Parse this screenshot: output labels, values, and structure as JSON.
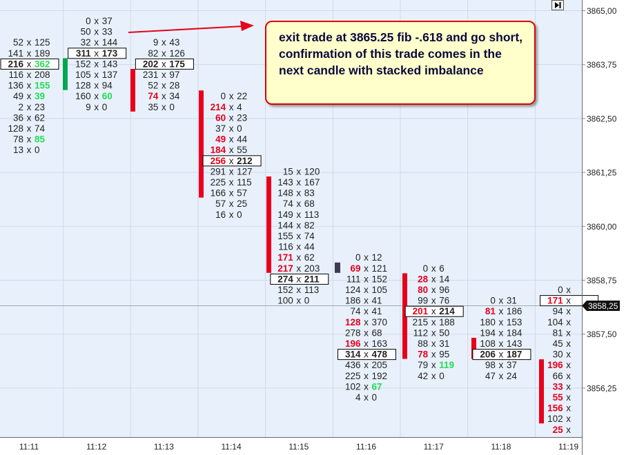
{
  "chart_data": {
    "type": "footprint",
    "y_ticks": [
      "3865,00",
      "3863,75",
      "3862,50",
      "3861,25",
      "3860,00",
      "3858,75",
      "3857,50",
      "3856,25"
    ],
    "x_ticks": [
      "11:11",
      "11:12",
      "11:13",
      "11:14",
      "11:15",
      "11:16",
      "11:17",
      "11:18",
      "11:19"
    ],
    "current_price": "3858,25",
    "colors": {
      "up": "#00a650",
      "down": "#e8001c",
      "bid_hi": "#e8001c",
      "ask_hi": "#22dd55",
      "bg": "#e8f1fb",
      "neutral_bar": "#3c3c50"
    },
    "bars": [
      {
        "color": "green",
        "top_row": 4,
        "bottom_row": 6
      },
      {
        "color": "red",
        "top_row": 5,
        "bottom_row": 8
      },
      {
        "color": "red",
        "top_row": 7,
        "bottom_row": 16
      },
      {
        "color": "red",
        "top_row": 15,
        "bottom_row": 23
      },
      {
        "color": "dark",
        "top_row": 23,
        "bottom_row": 23
      },
      {
        "color": "red",
        "top_row": 24,
        "bottom_row": 31
      },
      {
        "color": "red",
        "top_row": 30,
        "bottom_row": 31
      },
      {
        "color": "red",
        "top_row": 32,
        "bottom_row": 37
      }
    ],
    "columns": [
      {
        "time": "11:11",
        "start_row": 2,
        "cells": [
          {
            "bid": "52",
            "ask": "125"
          },
          {
            "bid": "141",
            "ask": "189"
          },
          {
            "bid": "216",
            "ask": "362",
            "bid_bold": true,
            "ask_hl": "green",
            "poc": true
          },
          {
            "bid": "116",
            "ask": "208"
          },
          {
            "bid": "136",
            "ask": "155",
            "ask_hl": "green"
          },
          {
            "bid": "49",
            "ask": "39",
            "ask_hl": "green"
          },
          {
            "bid": "2",
            "ask": "23"
          },
          {
            "bid": "36",
            "ask": "62"
          },
          {
            "bid": "128",
            "ask": "74"
          },
          {
            "bid": "78",
            "ask": "85",
            "ask_hl": "green"
          },
          {
            "bid": "13",
            "ask": "0"
          }
        ]
      },
      {
        "time": "11:12",
        "start_row": 0,
        "cells": [
          {
            "bid": "0",
            "ask": "37"
          },
          {
            "bid": "50",
            "ask": "33"
          },
          {
            "bid": "32",
            "ask": "144"
          },
          {
            "bid": "311",
            "ask": "173",
            "bid_bold": true,
            "ask_bold": true,
            "poc": true
          },
          {
            "bid": "152",
            "ask": "143"
          },
          {
            "bid": "105",
            "ask": "137"
          },
          {
            "bid": "128",
            "ask": "94"
          },
          {
            "bid": "160",
            "ask": "60",
            "ask_hl": "green"
          },
          {
            "bid": "9",
            "ask": "0"
          }
        ]
      },
      {
        "time": "11:13",
        "start_row": 2,
        "cells": [
          {
            "bid": "9",
            "ask": "43"
          },
          {
            "bid": "82",
            "ask": "126"
          },
          {
            "bid": "202",
            "ask": "175",
            "bid_bold": true,
            "ask_bold": true,
            "poc": true
          },
          {
            "bid": "231",
            "ask": "97"
          },
          {
            "bid": "52",
            "ask": "28"
          },
          {
            "bid": "74",
            "ask": "34",
            "bid_hl": "red"
          },
          {
            "bid": "35",
            "ask": "0"
          }
        ]
      },
      {
        "time": "11:14",
        "start_row": 7,
        "cells": [
          {
            "bid": "0",
            "ask": "22"
          },
          {
            "bid": "214",
            "ask": "4",
            "bid_hl": "red"
          },
          {
            "bid": "60",
            "ask": "23",
            "bid_hl": "red"
          },
          {
            "bid": "37",
            "ask": "0"
          },
          {
            "bid": "49",
            "ask": "44",
            "bid_hl": "red"
          },
          {
            "bid": "184",
            "ask": "55",
            "bid_hl": "red"
          },
          {
            "bid": "256",
            "ask": "212",
            "bid_hl": "red",
            "ask_bold": true,
            "poc": true
          },
          {
            "bid": "291",
            "ask": "127"
          },
          {
            "bid": "225",
            "ask": "115"
          },
          {
            "bid": "166",
            "ask": "57"
          },
          {
            "bid": "57",
            "ask": "25"
          },
          {
            "bid": "16",
            "ask": "0"
          }
        ]
      },
      {
        "time": "11:15",
        "start_row": 14,
        "cells": [
          {
            "bid": "15",
            "ask": "120"
          },
          {
            "bid": "143",
            "ask": "167"
          },
          {
            "bid": "148",
            "ask": "83"
          },
          {
            "bid": "74",
            "ask": "68"
          },
          {
            "bid": "149",
            "ask": "113"
          },
          {
            "bid": "144",
            "ask": "82"
          },
          {
            "bid": "155",
            "ask": "74"
          },
          {
            "bid": "116",
            "ask": "44"
          },
          {
            "bid": "171",
            "ask": "62",
            "bid_hl": "red"
          },
          {
            "bid": "217",
            "ask": "203",
            "bid_hl": "red"
          },
          {
            "bid": "274",
            "ask": "211",
            "bid_bold": true,
            "ask_bold": true,
            "poc": true
          },
          {
            "bid": "152",
            "ask": "113"
          },
          {
            "bid": "100",
            "ask": "0"
          }
        ]
      },
      {
        "time": "11:16",
        "start_row": 22,
        "cells": [
          {
            "bid": "0",
            "ask": "12"
          },
          {
            "bid": "69",
            "ask": "121",
            "bid_hl": "red"
          },
          {
            "bid": "111",
            "ask": "152"
          },
          {
            "bid": "124",
            "ask": "105"
          },
          {
            "bid": "186",
            "ask": "41"
          },
          {
            "bid": "74",
            "ask": "41"
          },
          {
            "bid": "128",
            "ask": "370",
            "bid_hl": "red"
          },
          {
            "bid": "278",
            "ask": "68"
          },
          {
            "bid": "196",
            "ask": "163",
            "bid_hl": "red"
          },
          {
            "bid": "314",
            "ask": "478",
            "bid_bold": true,
            "ask_bold": true,
            "poc": true
          },
          {
            "bid": "436",
            "ask": "205"
          },
          {
            "bid": "225",
            "ask": "192"
          },
          {
            "bid": "102",
            "ask": "67",
            "ask_hl": "green"
          },
          {
            "bid": "4",
            "ask": "0"
          }
        ]
      },
      {
        "time": "11:17",
        "start_row": 23,
        "cells": [
          {
            "bid": "0",
            "ask": "6"
          },
          {
            "bid": "28",
            "ask": "14",
            "bid_hl": "red"
          },
          {
            "bid": "80",
            "ask": "96",
            "bid_hl": "red"
          },
          {
            "bid": "99",
            "ask": "76"
          },
          {
            "bid": "201",
            "ask": "214",
            "bid_hl": "red",
            "ask_bold": true,
            "poc": true
          },
          {
            "bid": "215",
            "ask": "188"
          },
          {
            "bid": "112",
            "ask": "50"
          },
          {
            "bid": "88",
            "ask": "31"
          },
          {
            "bid": "78",
            "ask": "95",
            "bid_hl": "red"
          },
          {
            "bid": "79",
            "ask": "119",
            "ask_hl": "green"
          },
          {
            "bid": "42",
            "ask": "0"
          }
        ]
      },
      {
        "time": "11:18",
        "start_row": 26,
        "cells": [
          {
            "bid": "0",
            "ask": "31"
          },
          {
            "bid": "81",
            "ask": "186",
            "bid_hl": "red"
          },
          {
            "bid": "180",
            "ask": "153"
          },
          {
            "bid": "194",
            "ask": "184"
          },
          {
            "bid": "108",
            "ask": "143"
          },
          {
            "bid": "206",
            "ask": "187",
            "bid_bold": true,
            "ask_bold": true,
            "poc": true
          },
          {
            "bid": "98",
            "ask": "37"
          },
          {
            "bid": "47",
            "ask": "24"
          }
        ]
      },
      {
        "time": "11:19",
        "start_row": 25,
        "cells": [
          {
            "bid": "0",
            "ask": ""
          },
          {
            "bid": "171",
            "ask": "",
            "bid_hl": "red",
            "poc": true
          },
          {
            "bid": "94",
            "ask": ""
          },
          {
            "bid": "104",
            "ask": ""
          },
          {
            "bid": "81",
            "ask": ""
          },
          {
            "bid": "45",
            "ask": ""
          },
          {
            "bid": "30",
            "ask": ""
          },
          {
            "bid": "196",
            "ask": "",
            "bid_hl": "red"
          },
          {
            "bid": "66",
            "ask": ""
          },
          {
            "bid": "33",
            "ask": "",
            "bid_hl": "red"
          },
          {
            "bid": "55",
            "ask": "",
            "bid_hl": "red"
          },
          {
            "bid": "156",
            "ask": "",
            "bid_hl": "red"
          },
          {
            "bid": "102",
            "ask": ""
          },
          {
            "bid": "25",
            "ask": "",
            "bid_hl": "red"
          }
        ]
      }
    ]
  },
  "annotation": {
    "text": "exit trade at 3865.25 fib -.618 and go short, confirmation of this trade comes in the next candle with stacked imbalance"
  }
}
